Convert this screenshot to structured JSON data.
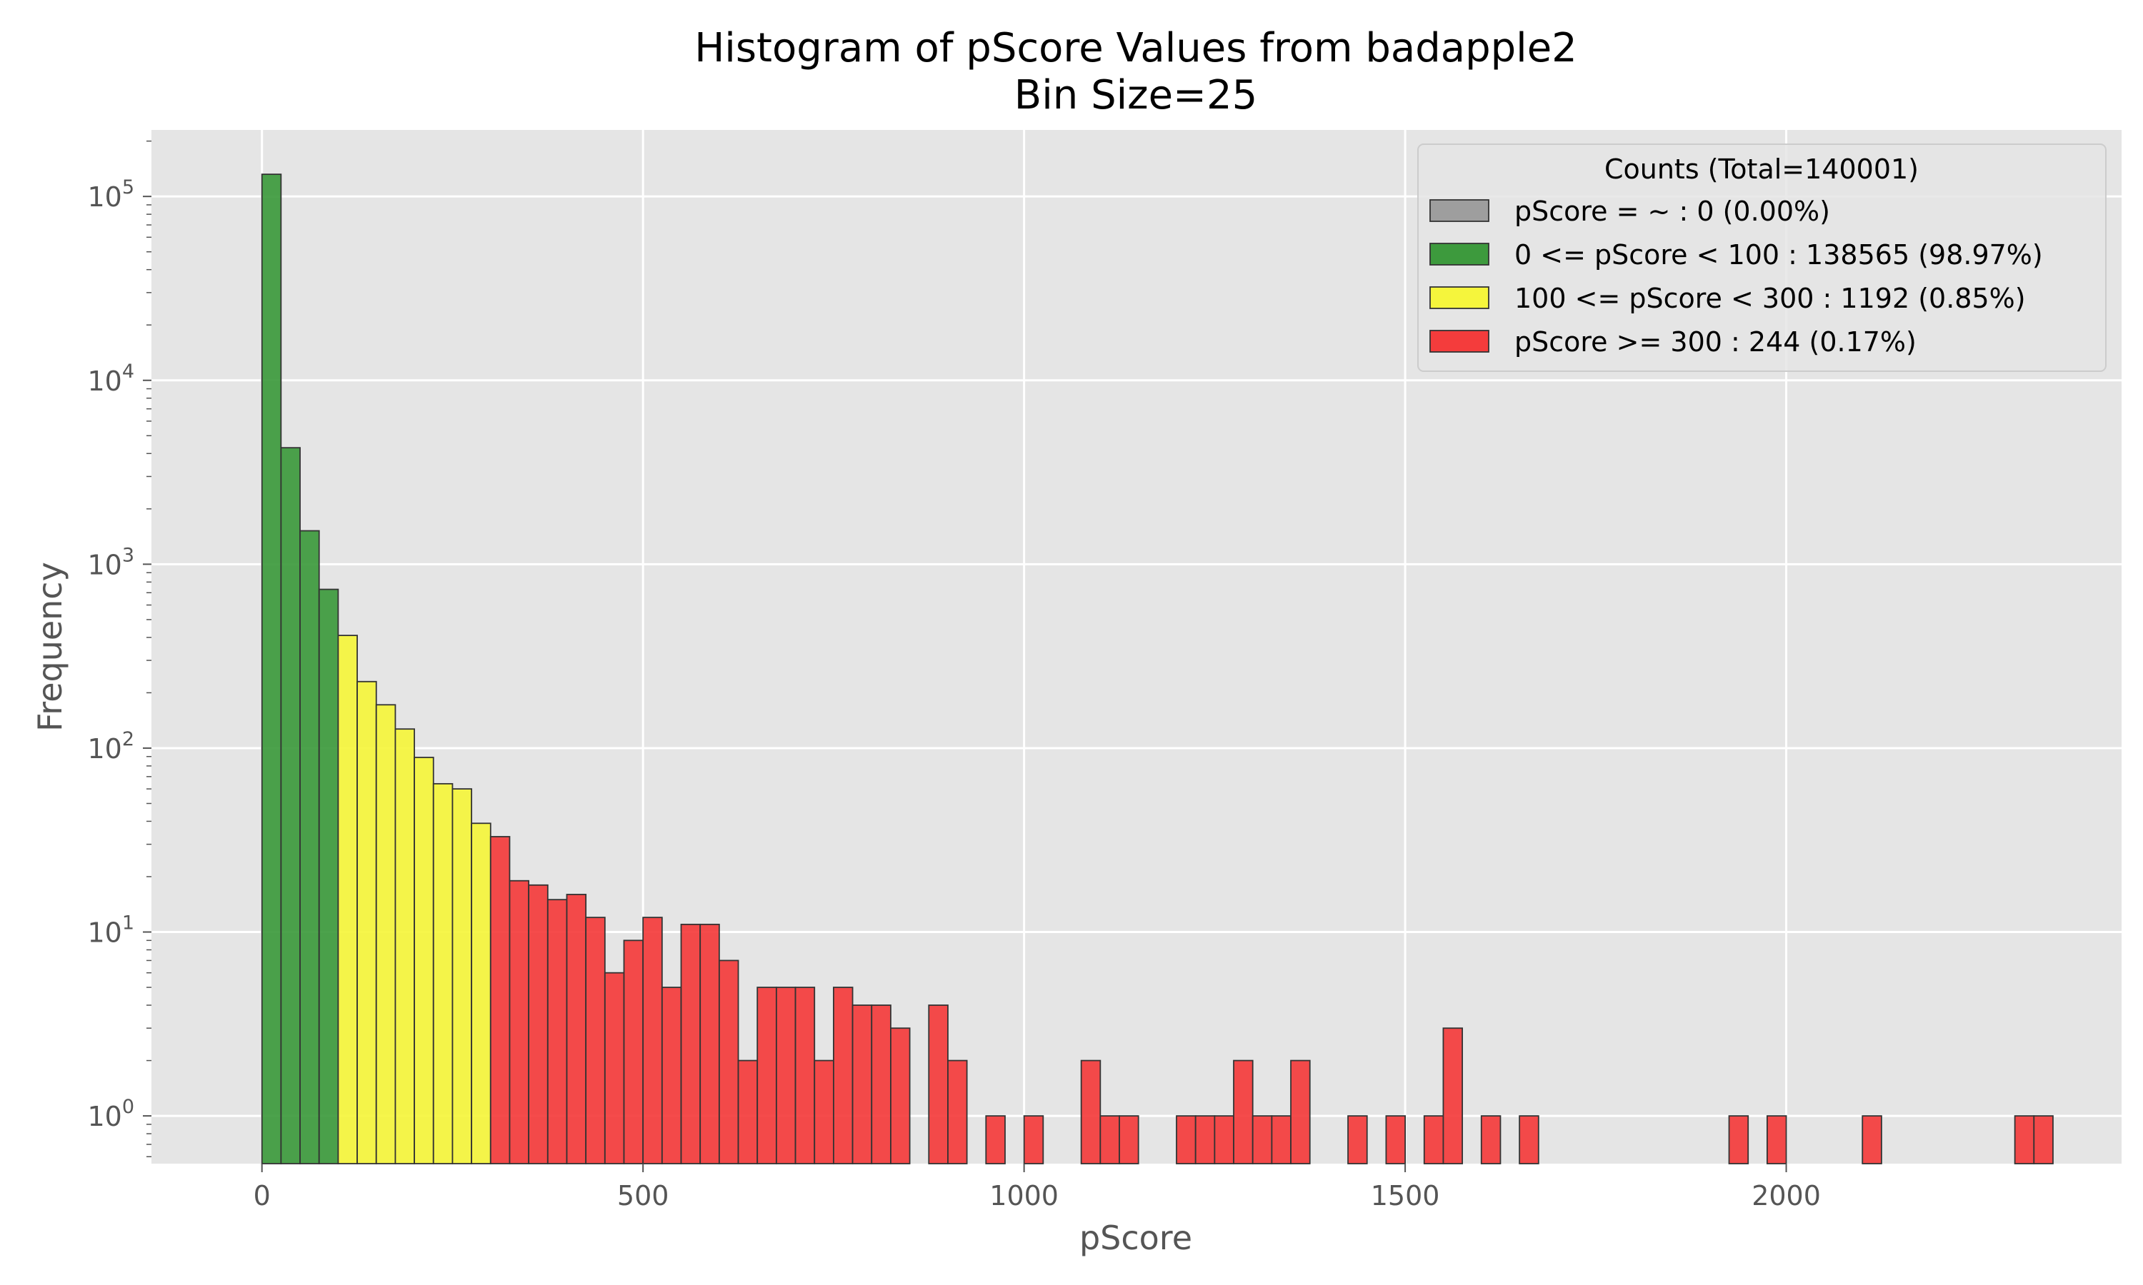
{
  "chart_data": {
    "type": "bar",
    "title": "Histogram of pScore Values from badapple2",
    "subtitle": "Bin Size=25",
    "xlabel": "pScore",
    "ylabel": "Frequency",
    "yscale": "log",
    "xlim": [
      -145,
      2440
    ],
    "ylim": [
      0.55,
      230000
    ],
    "xticks": [
      0,
      500,
      1000,
      1500,
      2000
    ],
    "xtick_labels": [
      "0",
      "500",
      "1000",
      "1500",
      "2000"
    ],
    "yticks": [
      1,
      10,
      100,
      1000,
      10000,
      100000
    ],
    "ytick_labels": [
      {
        "base": "10",
        "exp": "0"
      },
      {
        "base": "10",
        "exp": "1"
      },
      {
        "base": "10",
        "exp": "2"
      },
      {
        "base": "10",
        "exp": "3"
      },
      {
        "base": "10",
        "exp": "4"
      },
      {
        "base": "10",
        "exp": "5"
      }
    ],
    "grid": true,
    "bin_size": 25,
    "colors": {
      "gray": "#9e9e9e",
      "green": "#3d9a3d",
      "yellow": "#f5f53c",
      "red": "#f43c3c",
      "background": "#e5e5e5",
      "grid": "#ffffff",
      "edge": "#333333"
    },
    "legend": {
      "title": "Counts (Total=140001)",
      "placement": "top-right",
      "entries": [
        {
          "label": "pScore = ~ : 0 (0.00%)",
          "color": "#9e9e9e"
        },
        {
          "label": "0 <= pScore < 100 : 138565 (98.97%)",
          "color": "#3d9a3d"
        },
        {
          "label": "100 <= pScore < 300 : 1192 (0.85%)",
          "color": "#f5f53c"
        },
        {
          "label": "pScore >= 300 : 244 (0.17%)",
          "color": "#f43c3c"
        }
      ]
    },
    "series": [
      {
        "name": "0 <= pScore < 100",
        "color": "#3d9a3d",
        "bins": [
          [
            0,
            132000
          ],
          [
            25,
            4300
          ],
          [
            50,
            1520
          ],
          [
            75,
            730
          ]
        ]
      },
      {
        "name": "100 <= pScore < 300",
        "color": "#f5f53c",
        "bins": [
          [
            100,
            410
          ],
          [
            125,
            230
          ],
          [
            150,
            172
          ],
          [
            175,
            127
          ],
          [
            200,
            89
          ],
          [
            225,
            64
          ],
          [
            250,
            60
          ],
          [
            275,
            39
          ]
        ]
      },
      {
        "name": "pScore >= 300",
        "color": "#f43c3c",
        "bins": [
          [
            300,
            33
          ],
          [
            325,
            19
          ],
          [
            350,
            18
          ],
          [
            375,
            15
          ],
          [
            400,
            16
          ],
          [
            425,
            12
          ],
          [
            450,
            6
          ],
          [
            475,
            9
          ],
          [
            500,
            12
          ],
          [
            525,
            5
          ],
          [
            550,
            11
          ],
          [
            575,
            11
          ],
          [
            600,
            7
          ],
          [
            625,
            2
          ],
          [
            650,
            5
          ],
          [
            675,
            5
          ],
          [
            700,
            5
          ],
          [
            725,
            2
          ],
          [
            750,
            5
          ],
          [
            775,
            4
          ],
          [
            800,
            4
          ],
          [
            825,
            3
          ],
          [
            875,
            4
          ],
          [
            900,
            2
          ],
          [
            950,
            1
          ],
          [
            1000,
            1
          ],
          [
            1075,
            2
          ],
          [
            1100,
            1
          ],
          [
            1125,
            1
          ],
          [
            1200,
            1
          ],
          [
            1225,
            1
          ],
          [
            1250,
            1
          ],
          [
            1275,
            2
          ],
          [
            1300,
            1
          ],
          [
            1325,
            1
          ],
          [
            1350,
            2
          ],
          [
            1425,
            1
          ],
          [
            1475,
            1
          ],
          [
            1525,
            1
          ],
          [
            1550,
            3
          ],
          [
            1600,
            1
          ],
          [
            1650,
            1
          ],
          [
            1925,
            1
          ],
          [
            1975,
            1
          ],
          [
            2100,
            1
          ],
          [
            2300,
            1
          ],
          [
            2325,
            1
          ]
        ]
      }
    ]
  }
}
